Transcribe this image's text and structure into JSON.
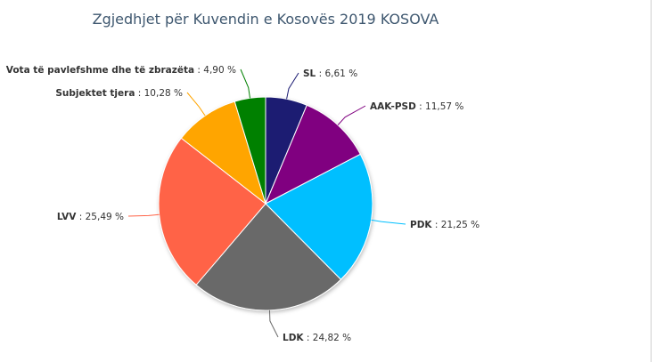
{
  "chart_data": {
    "type": "pie",
    "title": "Zgjedhjet për Kuvendin e Kosovës 2019 KOSOVA",
    "unit": "%",
    "slices": [
      {
        "name": "SL",
        "value": 6.61,
        "value_label": "6,61 %",
        "color": "#1a1a72"
      },
      {
        "name": "AAK-PSD",
        "value": 11.57,
        "value_label": "11,57 %",
        "color": "#800080"
      },
      {
        "name": "PDK",
        "value": 21.25,
        "value_label": "21,25 %",
        "color": "#00bfff"
      },
      {
        "name": "LDK",
        "value": 24.82,
        "value_label": "24,82 %",
        "color": "#696969"
      },
      {
        "name": "LVV",
        "value": 25.49,
        "value_label": "25,49 %",
        "color": "#ff6347"
      },
      {
        "name": "Subjektet tjera",
        "value": 10.28,
        "value_label": "10,28 %",
        "color": "#ffa500"
      },
      {
        "name": "Vota të pavlefshme dhe të zbrazëta",
        "value": 4.9,
        "value_label": "4,90 %",
        "color": "#008000"
      }
    ]
  }
}
